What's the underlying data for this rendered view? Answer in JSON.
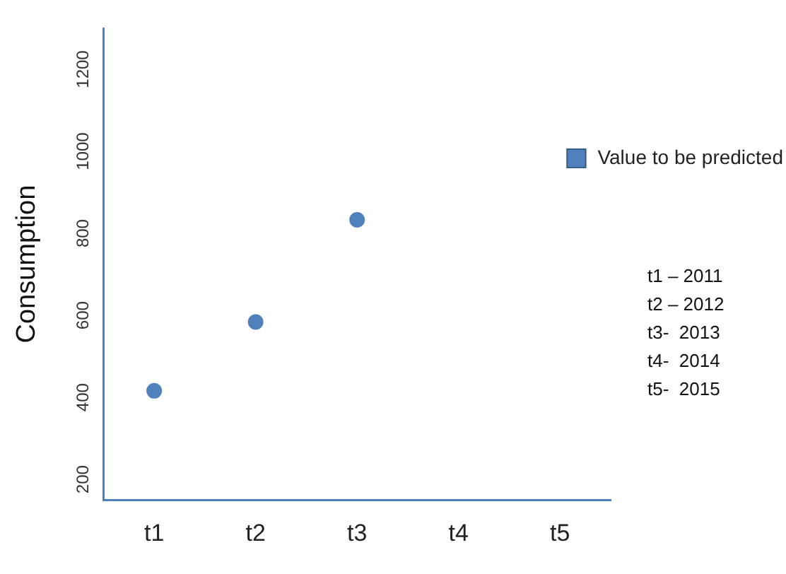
{
  "chart_data": {
    "type": "scatter",
    "ylabel": "Consumption",
    "categories": [
      "t1",
      "t2",
      "t3",
      "t4",
      "t5"
    ],
    "series": [
      {
        "name": "Value to be predicted",
        "color": "#4f81bd",
        "values": [
          416,
          584,
          833,
          null,
          null
        ]
      }
    ],
    "ylim": [
      150,
      1300
    ],
    "yticks": [
      200,
      400,
      600,
      800,
      1000,
      1200
    ],
    "grid": false,
    "legend": "top right",
    "marker": "circle",
    "annotations": [
      "t1 – 2011",
      "t2 – 2012",
      "t3-  2013",
      "t4-  2014",
      "t5-  2015"
    ]
  }
}
